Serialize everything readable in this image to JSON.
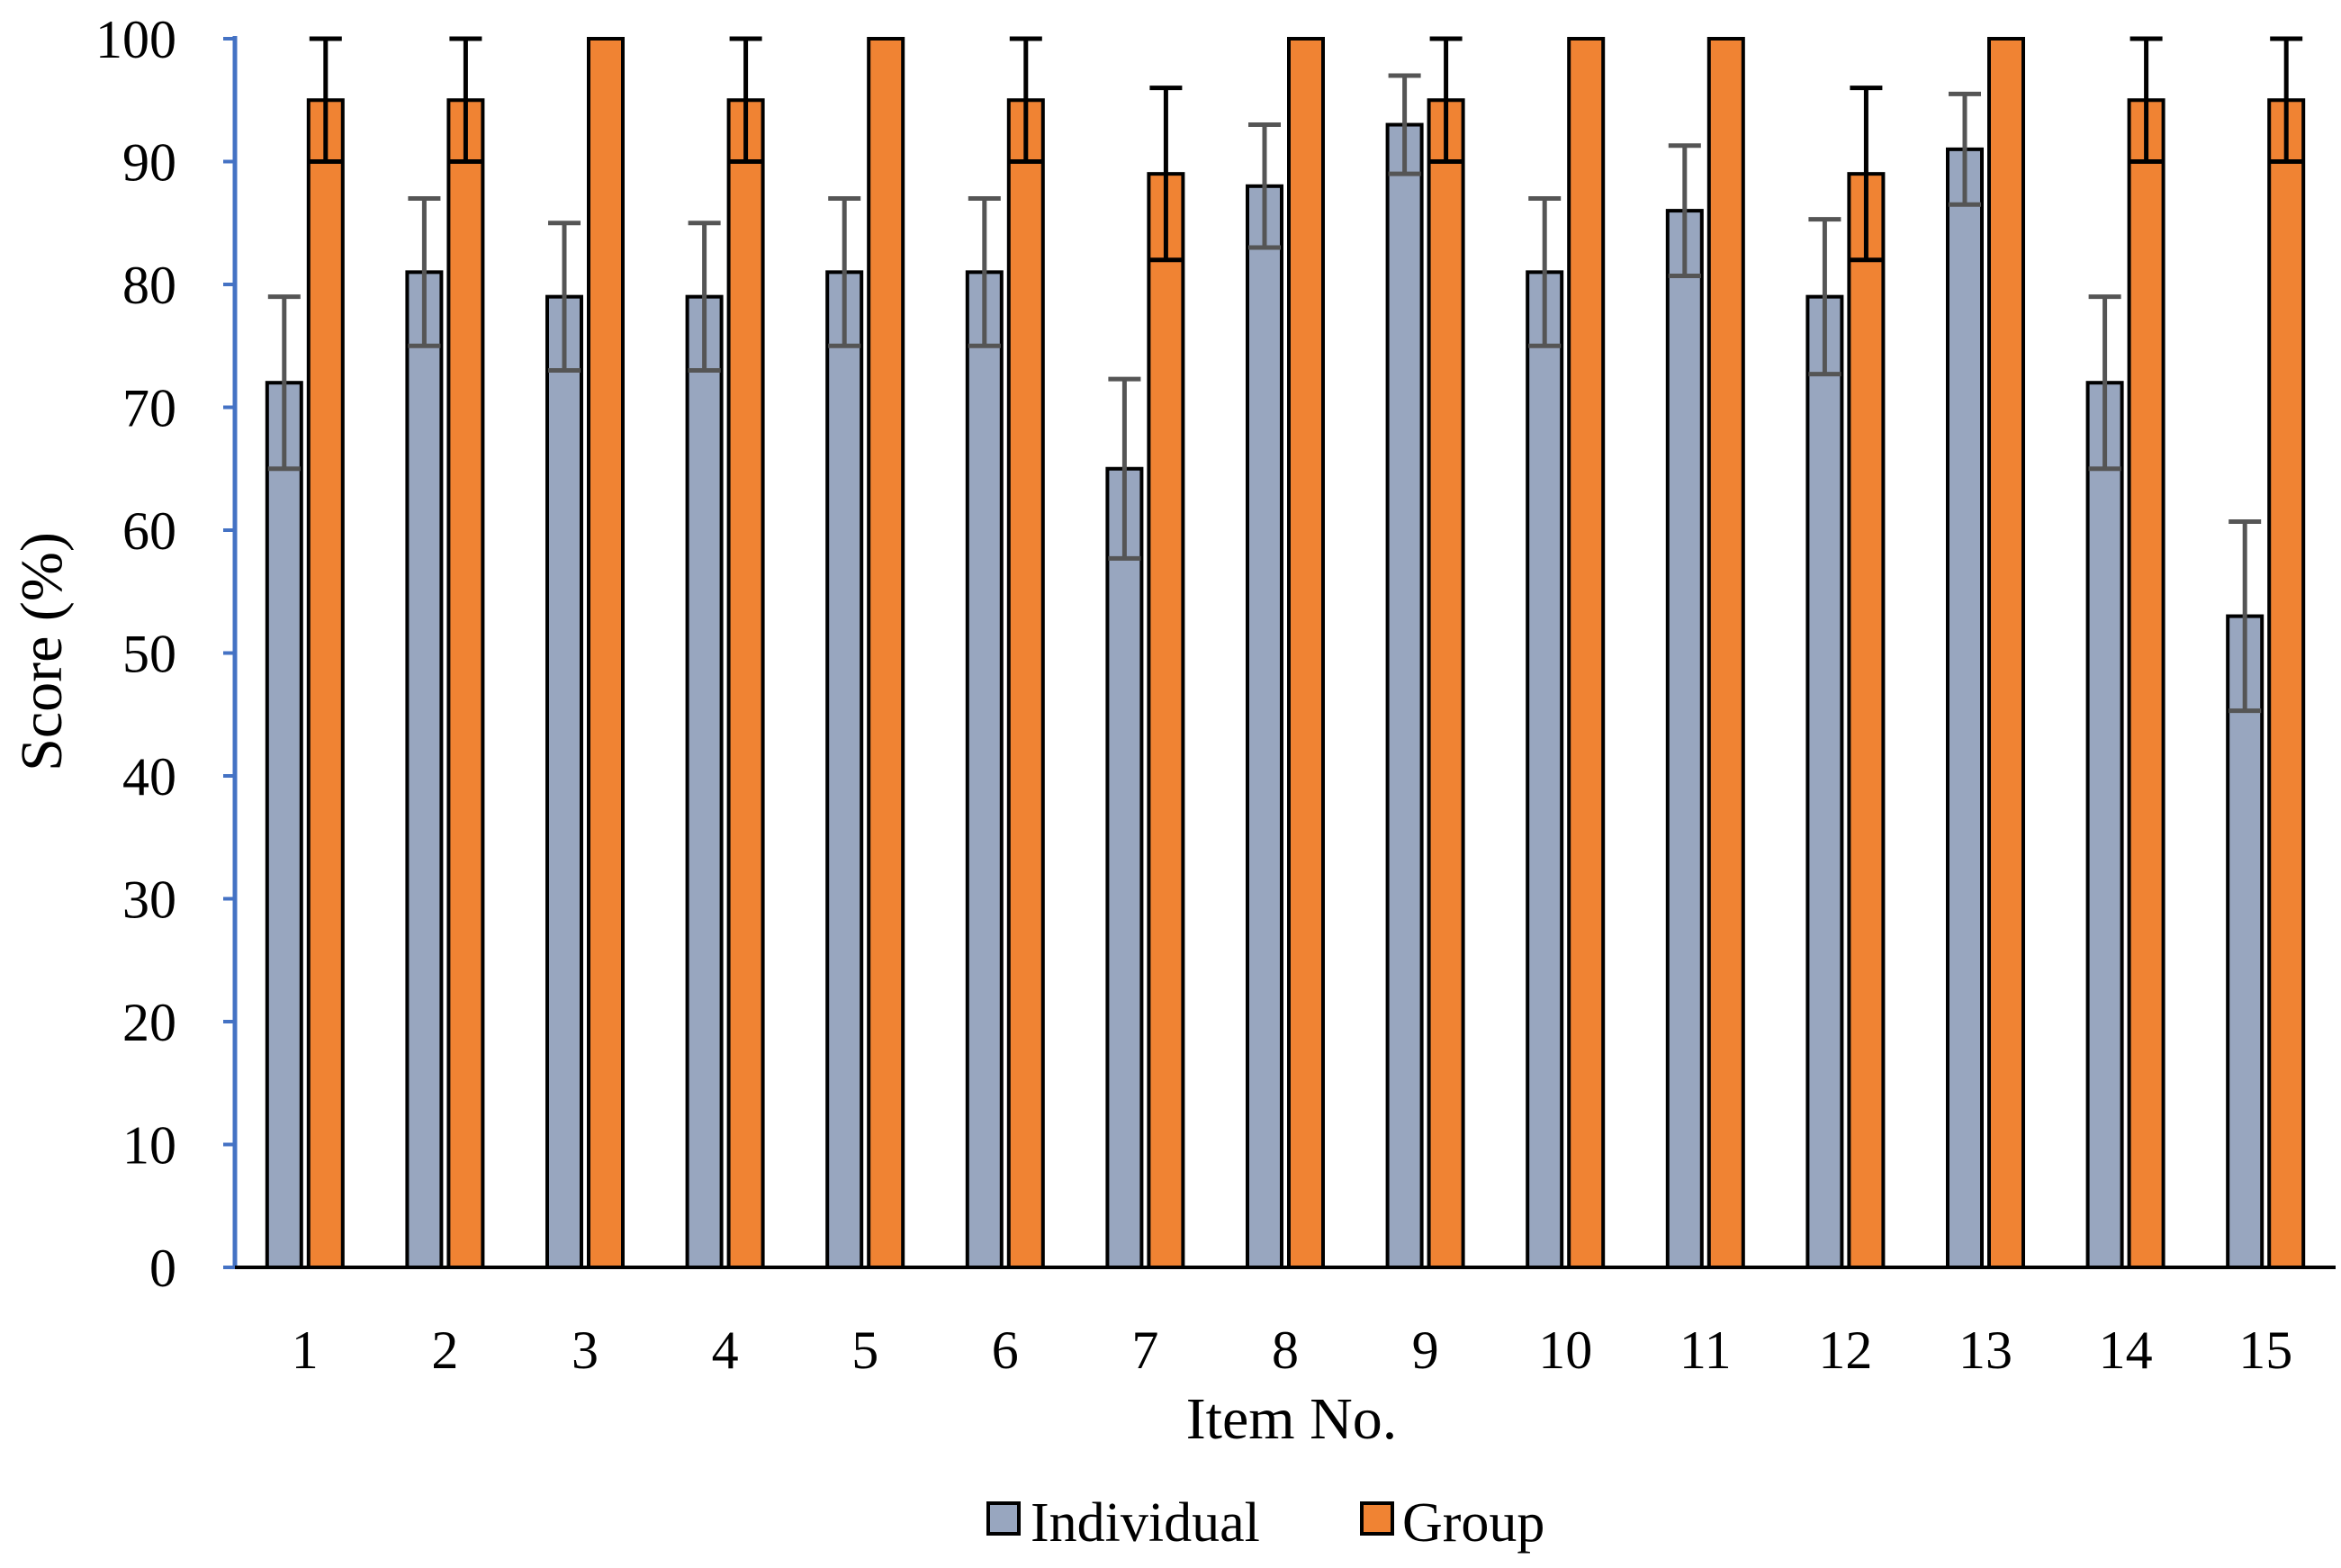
{
  "chart_data": {
    "type": "bar",
    "xlabel": "Item No.",
    "ylabel": "Score (%)",
    "ylim": [
      0,
      100
    ],
    "yticks": [
      "0",
      "10",
      "20",
      "30",
      "40",
      "50",
      "60",
      "70",
      "80",
      "90",
      "100"
    ],
    "grid": false,
    "legend_position": "bottom-center",
    "categories": [
      "1",
      "2",
      "3",
      "4",
      "5",
      "6",
      "7",
      "8",
      "9",
      "10",
      "11",
      "12",
      "13",
      "14",
      "15"
    ],
    "series": [
      {
        "name": "Individual",
        "color": "#98a6bf",
        "error_color": "#555555",
        "values": [
          72,
          81,
          79,
          79,
          81,
          81,
          65,
          88,
          93,
          81,
          86,
          79,
          91,
          72,
          53
        ],
        "errors": [
          7,
          6,
          6,
          6,
          6,
          6,
          7.3,
          5,
          4,
          6,
          5.3,
          6.3,
          4.5,
          7,
          7.7
        ]
      },
      {
        "name": "Group",
        "color": "#f08333",
        "error_color": "#000000",
        "values": [
          95,
          95,
          100,
          95,
          100,
          95,
          89,
          100,
          95,
          100,
          100,
          89,
          100,
          95,
          95
        ],
        "errors": [
          5,
          5,
          0,
          5,
          0,
          5,
          7,
          0,
          5,
          0,
          0,
          7,
          0,
          5,
          5
        ]
      }
    ]
  }
}
